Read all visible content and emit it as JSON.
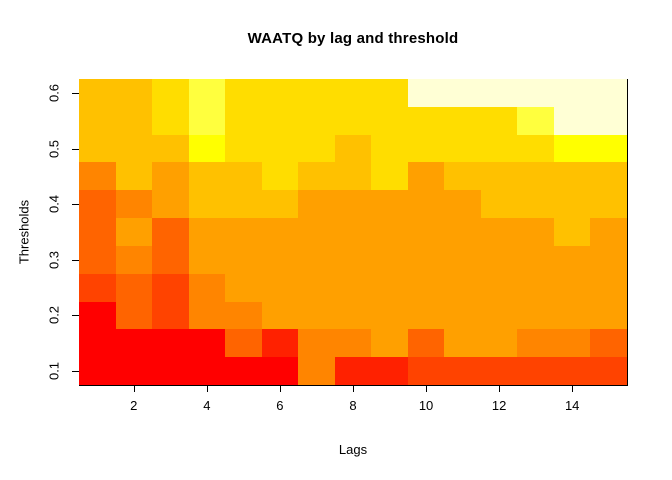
{
  "chart_data": {
    "type": "heatmap",
    "title": "WAATQ by lag and threshold",
    "xlabel": "Lags",
    "ylabel": "Thresholds",
    "x_categories": [
      1,
      2,
      3,
      4,
      5,
      6,
      7,
      8,
      9,
      10,
      11,
      12,
      13,
      14,
      15
    ],
    "y_categories": [
      0.1,
      0.15,
      0.2,
      0.25,
      0.3,
      0.35,
      0.4,
      0.45,
      0.5,
      0.55,
      0.6
    ],
    "x_axis_ticks": [
      {
        "label": "2",
        "value": 2
      },
      {
        "label": "4",
        "value": 4
      },
      {
        "label": "6",
        "value": 6
      },
      {
        "label": "8",
        "value": 8
      },
      {
        "label": "10",
        "value": 10
      },
      {
        "label": "12",
        "value": 12
      },
      {
        "label": "14",
        "value": 14
      }
    ],
    "y_axis_ticks": [
      {
        "label": "0.1",
        "value": 0.1
      },
      {
        "label": "0.2",
        "value": 0.2
      },
      {
        "label": "0.3",
        "value": 0.3
      },
      {
        "label": "0.4",
        "value": 0.4
      },
      {
        "label": "0.5",
        "value": 0.5
      },
      {
        "label": "0.6",
        "value": 0.6
      }
    ],
    "x_range": [
      0.5,
      15.5
    ],
    "y_range": [
      0.075,
      0.625
    ],
    "grid_on": false,
    "legend": "none",
    "palette": {
      "R0": "#FF0000",
      "R2": "#FF2100",
      "R4": "#FF4300",
      "R6": "#FF6400",
      "O8": "#FF8500",
      "O9": "#FFA000",
      "A": "#FFC100",
      "G": "#FFDD00",
      "Y": "#FFFF00",
      "Y2": "#FFFF3E",
      "C": "#FFFFD5"
    },
    "rows_top_to_bottom": [
      {
        "threshold": 0.6,
        "colors": [
          "A",
          "A",
          "G",
          "Y2",
          "G",
          "G",
          "G",
          "G",
          "G",
          "C",
          "C",
          "C",
          "C",
          "C",
          "C"
        ]
      },
      {
        "threshold": 0.55,
        "colors": [
          "A",
          "A",
          "G",
          "Y2",
          "G",
          "G",
          "G",
          "G",
          "G",
          "G",
          "G",
          "G",
          "Y2",
          "C",
          "C"
        ]
      },
      {
        "threshold": 0.5,
        "colors": [
          "A",
          "A",
          "A",
          "Y",
          "G",
          "G",
          "G",
          "A",
          "G",
          "G",
          "G",
          "G",
          "G",
          "Y",
          "Y"
        ]
      },
      {
        "threshold": 0.45,
        "colors": [
          "O8",
          "A",
          "O9",
          "A",
          "A",
          "G",
          "A",
          "A",
          "G",
          "O9",
          "A",
          "A",
          "A",
          "A",
          "A"
        ]
      },
      {
        "threshold": 0.4,
        "colors": [
          "R6",
          "O8",
          "O9",
          "A",
          "A",
          "A",
          "O9",
          "O9",
          "O9",
          "O9",
          "O9",
          "A",
          "A",
          "A",
          "A"
        ]
      },
      {
        "threshold": 0.35,
        "colors": [
          "R6",
          "O9",
          "R6",
          "O9",
          "O9",
          "O9",
          "O9",
          "O9",
          "O9",
          "O9",
          "O9",
          "O9",
          "O9",
          "A",
          "O9"
        ]
      },
      {
        "threshold": 0.3,
        "colors": [
          "R6",
          "O8",
          "R6",
          "O9",
          "O9",
          "O9",
          "O9",
          "O9",
          "O9",
          "O9",
          "O9",
          "O9",
          "O9",
          "O9",
          "O9"
        ]
      },
      {
        "threshold": 0.25,
        "colors": [
          "R4",
          "R6",
          "R4",
          "O8",
          "O9",
          "O9",
          "O9",
          "O9",
          "O9",
          "O9",
          "O9",
          "O9",
          "O9",
          "O9",
          "O9"
        ]
      },
      {
        "threshold": 0.2,
        "colors": [
          "R0",
          "R6",
          "R4",
          "O8",
          "O8",
          "O9",
          "O9",
          "O9",
          "O9",
          "O9",
          "O9",
          "O9",
          "O9",
          "O9",
          "O9"
        ]
      },
      {
        "threshold": 0.15,
        "colors": [
          "R0",
          "R0",
          "R0",
          "R0",
          "R6",
          "R2",
          "O8",
          "O8",
          "O9",
          "R6",
          "O9",
          "O9",
          "O8",
          "O8",
          "R6"
        ]
      },
      {
        "threshold": 0.1,
        "colors": [
          "R0",
          "R0",
          "R0",
          "R0",
          "R0",
          "R0",
          "O8",
          "R2",
          "R2",
          "R4",
          "R4",
          "R4",
          "R4",
          "R4",
          "R4"
        ]
      }
    ],
    "axis_color": "#000000",
    "background_color": "#FFFFFF"
  }
}
